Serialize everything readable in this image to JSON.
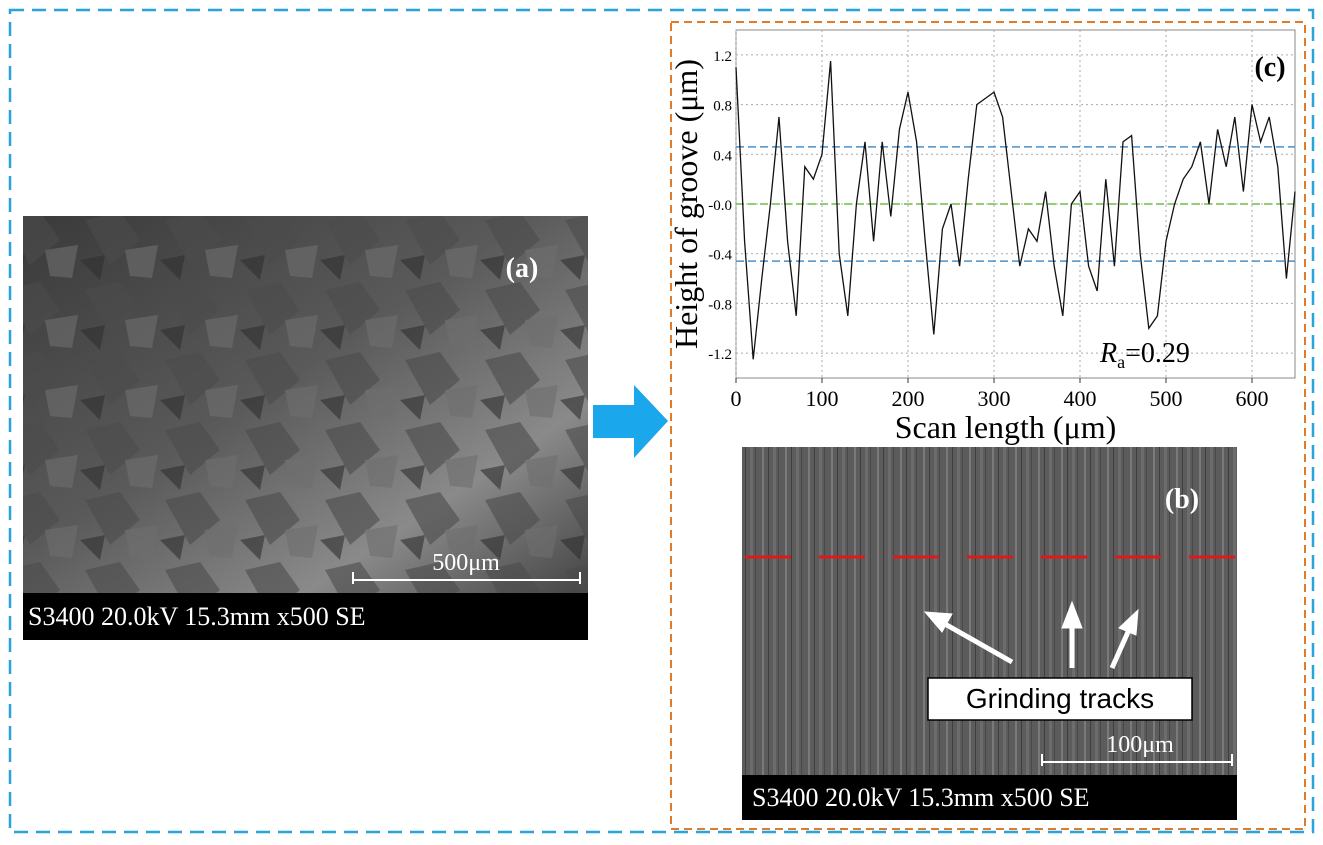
{
  "panels": {
    "a": {
      "label": "(a)",
      "scale_bar": "500μm",
      "caption": "S3400 20.0kV 15.3mm x500 SE"
    },
    "b": {
      "label": "(b)",
      "scale_bar": "100μm",
      "caption": "S3400 20.0kV 15.3mm x500 SE",
      "annotation": "Grinding tracks"
    }
  },
  "chart_data": {
    "type": "line",
    "panel_label": "(c)",
    "x_label": "Scan length (μm)",
    "y_label": "Height of groove (μm)",
    "annotation": {
      "symbol": "R",
      "subscript": "a",
      "text": "=0.29"
    },
    "x": [
      0,
      10,
      20,
      30,
      40,
      50,
      60,
      70,
      80,
      90,
      100,
      110,
      120,
      130,
      140,
      150,
      160,
      170,
      180,
      190,
      200,
      210,
      220,
      230,
      240,
      250,
      260,
      270,
      280,
      290,
      300,
      310,
      320,
      330,
      340,
      350,
      360,
      370,
      380,
      390,
      400,
      410,
      420,
      430,
      440,
      450,
      460,
      470,
      480,
      490,
      500,
      510,
      520,
      530,
      540,
      550,
      560,
      570,
      580,
      590,
      600,
      610,
      620,
      630,
      640,
      650
    ],
    "values": [
      1.1,
      -0.3,
      -1.25,
      -0.6,
      0.0,
      0.7,
      -0.3,
      -0.9,
      0.3,
      0.2,
      0.4,
      1.15,
      -0.4,
      -0.9,
      0.0,
      0.5,
      -0.3,
      0.5,
      -0.1,
      0.6,
      0.9,
      0.5,
      -0.3,
      -1.05,
      -0.2,
      0.0,
      -0.5,
      0.2,
      0.8,
      0.85,
      0.9,
      0.7,
      0.1,
      -0.5,
      -0.2,
      -0.3,
      0.1,
      -0.5,
      -0.9,
      0.0,
      0.1,
      -0.5,
      -0.7,
      0.2,
      -0.5,
      0.5,
      0.55,
      -0.4,
      -1.0,
      -0.9,
      -0.3,
      0.0,
      0.2,
      0.3,
      0.5,
      0.0,
      0.6,
      0.3,
      0.7,
      0.1,
      0.8,
      0.5,
      0.7,
      0.3,
      -0.6,
      0.1
    ],
    "color": "#111111",
    "xlim": [
      0,
      650
    ],
    "xticks": [
      0,
      100,
      200,
      300,
      400,
      500,
      600
    ],
    "ylim": [
      -1.4,
      1.4
    ],
    "yticks": [
      -1.2,
      -0.8,
      -0.4,
      {
        "value": 0,
        "label": "-0.0"
      },
      0.4,
      0.8,
      1.2
    ],
    "grid": true,
    "reference_lines": [
      {
        "value": 0.46,
        "color": "#4a8fc9"
      },
      {
        "value": -0.46,
        "color": "#4a8fc9"
      },
      {
        "value": 0,
        "color": "#6cbf45"
      }
    ]
  }
}
